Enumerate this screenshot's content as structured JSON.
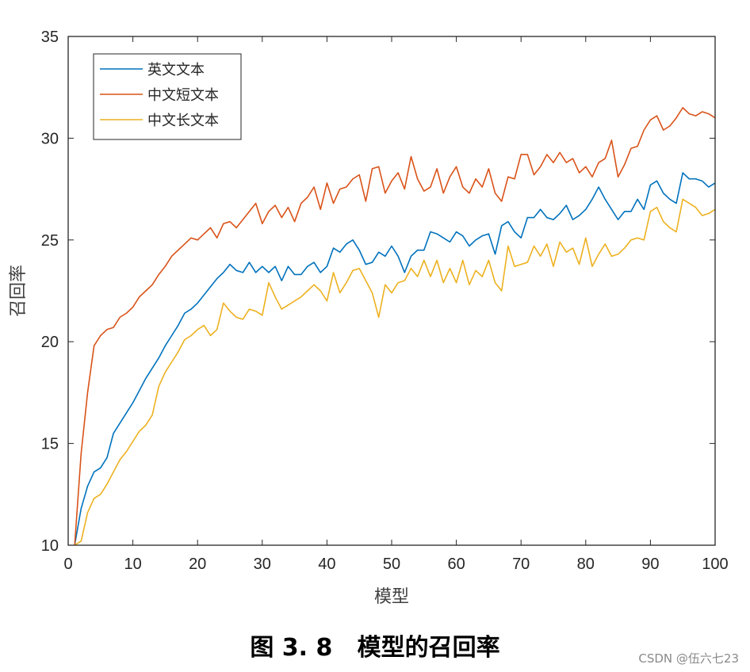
{
  "caption": "图 3. 8   模型的召回率",
  "watermark": "CSDN @伍六七23",
  "chart_data": {
    "type": "line",
    "title": "",
    "xlabel": "模型",
    "ylabel": "召回率",
    "xlim": [
      0,
      100
    ],
    "ylim": [
      10,
      35
    ],
    "xticks": [
      0,
      10,
      20,
      30,
      40,
      50,
      60,
      70,
      80,
      90,
      100
    ],
    "yticks": [
      10,
      15,
      20,
      25,
      30,
      35
    ],
    "grid": false,
    "legend_position": "top-left",
    "x": [
      1,
      2,
      3,
      4,
      5,
      6,
      7,
      8,
      9,
      10,
      11,
      12,
      13,
      14,
      15,
      16,
      17,
      18,
      19,
      20,
      21,
      22,
      23,
      24,
      25,
      26,
      27,
      28,
      29,
      30,
      31,
      32,
      33,
      34,
      35,
      36,
      37,
      38,
      39,
      40,
      41,
      42,
      43,
      44,
      45,
      46,
      47,
      48,
      49,
      50,
      51,
      52,
      53,
      54,
      55,
      56,
      57,
      58,
      59,
      60,
      61,
      62,
      63,
      64,
      65,
      66,
      67,
      68,
      69,
      70,
      71,
      72,
      73,
      74,
      75,
      76,
      77,
      78,
      79,
      80,
      81,
      82,
      83,
      84,
      85,
      86,
      87,
      88,
      89,
      90,
      91,
      92,
      93,
      94,
      95,
      96,
      97,
      98,
      99,
      100
    ],
    "series": [
      {
        "name": "英文文本",
        "color": "#0072BD",
        "values": [
          10.0,
          11.8,
          12.9,
          13.6,
          13.8,
          14.3,
          15.5,
          16.0,
          16.5,
          17.0,
          17.6,
          18.2,
          18.7,
          19.2,
          19.8,
          20.3,
          20.8,
          21.4,
          21.6,
          21.9,
          22.3,
          22.7,
          23.1,
          23.4,
          23.8,
          23.5,
          23.4,
          23.9,
          23.4,
          23.7,
          23.4,
          23.7,
          23.0,
          23.7,
          23.3,
          23.3,
          23.7,
          23.9,
          23.4,
          23.7,
          24.6,
          24.4,
          24.8,
          25.0,
          24.5,
          23.8,
          23.9,
          24.4,
          24.2,
          24.7,
          24.2,
          23.4,
          24.2,
          24.5,
          24.5,
          25.4,
          25.3,
          25.1,
          24.9,
          25.4,
          25.2,
          24.7,
          25.0,
          25.2,
          25.3,
          24.3,
          25.7,
          25.9,
          25.4,
          25.1,
          26.1,
          26.1,
          26.5,
          26.1,
          26.0,
          26.3,
          26.7,
          26.0,
          26.2,
          26.5,
          27.0,
          27.6,
          27.0,
          26.5,
          26.0,
          26.4,
          26.4,
          27.0,
          26.5,
          27.7,
          27.9,
          27.3,
          27.0,
          26.8,
          28.3,
          28.0,
          28.0,
          27.9,
          27.6,
          27.8
        ]
      },
      {
        "name": "中文短文本",
        "color": "#D95319",
        "values": [
          10.0,
          14.5,
          17.5,
          19.8,
          20.3,
          20.6,
          20.7,
          21.2,
          21.4,
          21.7,
          22.2,
          22.5,
          22.8,
          23.3,
          23.7,
          24.2,
          24.5,
          24.8,
          25.1,
          25.0,
          25.3,
          25.6,
          25.1,
          25.8,
          25.9,
          25.6,
          26.0,
          26.4,
          26.8,
          25.8,
          26.4,
          26.7,
          26.1,
          26.6,
          25.9,
          26.8,
          27.1,
          27.6,
          26.5,
          27.8,
          26.8,
          27.5,
          27.6,
          28.0,
          28.2,
          26.9,
          28.5,
          28.6,
          27.3,
          27.9,
          28.3,
          27.5,
          29.1,
          28.0,
          27.4,
          27.6,
          28.5,
          27.3,
          28.1,
          28.6,
          27.6,
          27.3,
          28.0,
          27.6,
          28.5,
          27.3,
          26.9,
          28.1,
          28.0,
          29.2,
          29.2,
          28.2,
          28.6,
          29.2,
          28.8,
          29.3,
          28.8,
          29.0,
          28.3,
          28.6,
          28.1,
          28.8,
          29.0,
          29.9,
          28.1,
          28.7,
          29.5,
          29.6,
          30.4,
          30.9,
          31.1,
          30.4,
          30.6,
          31.0,
          31.5,
          31.2,
          31.1,
          31.3,
          31.2,
          31.0
        ]
      },
      {
        "name": "中文长文本",
        "color": "#EDB120",
        "values": [
          10.0,
          10.2,
          11.6,
          12.3,
          12.5,
          13.0,
          13.6,
          14.2,
          14.6,
          15.1,
          15.6,
          15.9,
          16.4,
          17.8,
          18.5,
          19.0,
          19.5,
          20.1,
          20.3,
          20.6,
          20.8,
          20.3,
          20.6,
          21.9,
          21.5,
          21.2,
          21.1,
          21.6,
          21.5,
          21.3,
          22.9,
          22.2,
          21.6,
          21.8,
          22.0,
          22.2,
          22.5,
          22.8,
          22.5,
          22.0,
          23.4,
          22.4,
          22.9,
          23.5,
          23.6,
          23.0,
          22.4,
          21.2,
          22.8,
          22.4,
          22.9,
          23.0,
          23.6,
          23.2,
          24.0,
          23.2,
          24.0,
          22.9,
          23.6,
          22.9,
          24.0,
          22.8,
          23.5,
          23.2,
          24.0,
          22.9,
          22.5,
          24.7,
          23.7,
          23.8,
          23.9,
          24.7,
          24.2,
          24.8,
          23.7,
          24.9,
          24.4,
          24.6,
          23.8,
          25.1,
          23.7,
          24.3,
          24.8,
          24.2,
          24.3,
          24.6,
          25.0,
          25.1,
          25.0,
          26.4,
          26.6,
          25.9,
          25.6,
          25.4,
          27.0,
          26.8,
          26.6,
          26.2,
          26.3,
          26.5
        ]
      }
    ]
  }
}
